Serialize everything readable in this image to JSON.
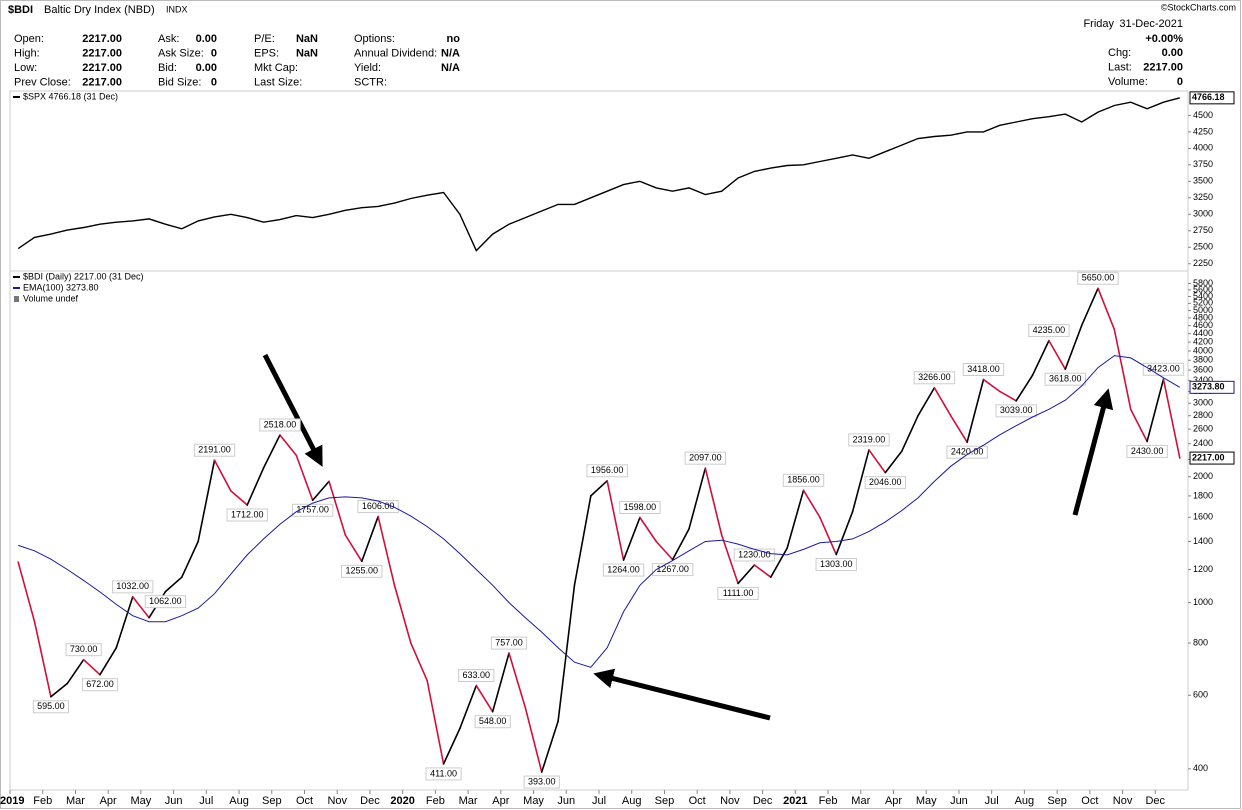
{
  "header": {
    "symbol": "$BDI",
    "name": "Baltic Dry Index (NBD)",
    "exchange": "INDX",
    "watermark": "©StockCharts.com",
    "stats": [
      {
        "label": "Open:",
        "value": "2217.00"
      },
      {
        "label": "High:",
        "value": "2217.00"
      },
      {
        "label": "Low:",
        "value": "2217.00"
      },
      {
        "label": "Prev Close:",
        "value": "2217.00"
      },
      {
        "label": "Ask:",
        "value": "0.00"
      },
      {
        "label": "Ask Size:",
        "value": "0"
      },
      {
        "label": "Bid:",
        "value": "0.00"
      },
      {
        "label": "Bid Size:",
        "value": "0"
      },
      {
        "label": "P/E:",
        "value": "NaN"
      },
      {
        "label": "EPS:",
        "value": "NaN"
      },
      {
        "label": "Mkt Cap:"
      },
      {
        "label": "Last Size:"
      },
      {
        "label": "Options:",
        "value": "no"
      },
      {
        "label": "Annual Dividend:",
        "value": "N/A"
      },
      {
        "label": "Yield:",
        "value": "N/A"
      },
      {
        "label": "SCTR:"
      }
    ],
    "day": "Friday",
    "date": "31-Dec-2021",
    "change_pct": "+0.00%",
    "quote": [
      {
        "label": "Chg:",
        "value": "0.00"
      },
      {
        "label": "Last:",
        "value": "2217.00"
      },
      {
        "label": "Volume:",
        "value": "0"
      }
    ]
  },
  "chart_data": [
    {
      "type": "line",
      "ylim": [
        2140,
        4870
      ],
      "yticks": [
        2250,
        2500,
        2750,
        3000,
        3250,
        3500,
        3750,
        4000,
        4250,
        4500
      ],
      "series": [
        {
          "name": "$SPX 4766.18 (31 Dec)",
          "color": "#000000",
          "values": [
            2480,
            2650,
            2700,
            2760,
            2800,
            2850,
            2880,
            2900,
            2930,
            2850,
            2780,
            2900,
            2960,
            3000,
            2950,
            2880,
            2920,
            2980,
            2950,
            3000,
            3060,
            3100,
            3120,
            3170,
            3240,
            3290,
            3330,
            3000,
            2450,
            2700,
            2850,
            2950,
            3050,
            3150,
            3150,
            3250,
            3350,
            3450,
            3500,
            3400,
            3350,
            3400,
            3300,
            3350,
            3550,
            3650,
            3700,
            3740,
            3750,
            3800,
            3850,
            3900,
            3850,
            3950,
            4050,
            4150,
            4180,
            4200,
            4250,
            4250,
            4350,
            4400,
            4450,
            4480,
            4520,
            4400,
            4550,
            4650,
            4700,
            4600,
            4700,
            4766.18
          ],
          "value_labels": [
            null,
            null,
            null,
            null,
            null,
            null,
            null,
            null,
            null,
            null,
            null,
            null,
            null,
            null,
            null,
            null,
            null,
            null,
            null,
            null,
            null,
            null,
            null,
            null,
            null,
            null,
            null,
            null,
            null,
            null,
            null,
            null,
            null,
            null,
            null,
            null,
            null,
            null,
            null,
            null,
            null,
            null,
            null,
            null,
            null,
            null,
            null,
            null,
            null,
            null,
            null,
            null,
            null,
            null,
            null,
            null,
            null,
            null,
            null,
            null,
            null,
            null,
            null,
            null,
            null,
            null,
            null,
            null,
            null,
            null,
            null,
            "4766.18"
          ]
        }
      ]
    },
    {
      "type": "line",
      "log_scale": true,
      "ylim": [
        356,
        6215
      ],
      "yticks": [
        400,
        600,
        800,
        1000,
        1200,
        1400,
        1600,
        1800,
        2000,
        2200,
        2400,
        2600,
        2800,
        3000,
        3200,
        3400,
        3600,
        3800,
        4000,
        4200,
        4400,
        4600,
        4800,
        5000,
        5200,
        5400,
        5600,
        5800
      ],
      "categories": [
        "2019",
        null,
        "Feb",
        null,
        "Mar",
        null,
        "Apr",
        null,
        "May",
        null,
        "Jun",
        null,
        "Jul",
        null,
        "Aug",
        null,
        "Sep",
        null,
        "Oct",
        null,
        "Nov",
        null,
        "Dec",
        null,
        "2020",
        null,
        "Feb",
        null,
        "Mar",
        null,
        "Apr",
        null,
        "May",
        null,
        "Jun",
        null,
        "Jul",
        null,
        "Aug",
        null,
        "Sep",
        null,
        "Oct",
        null,
        "Nov",
        null,
        "Dec",
        null,
        "2021",
        null,
        "Feb",
        null,
        "Mar",
        null,
        "Apr",
        null,
        "May",
        null,
        "Jun",
        null,
        "Jul",
        null,
        "Aug",
        null,
        "Sep",
        null,
        "Oct",
        null,
        "Nov",
        null,
        "Dec",
        null
      ],
      "extra_legend": "Volume undef",
      "series": [
        {
          "name": "$BDI (Daily) 2217.00 (31 Dec)",
          "color": "#000000",
          "down_color": "#d0103a",
          "values": [
            1250,
            900,
            595,
            640,
            730,
            672,
            780,
            1032,
            920,
            1062,
            1150,
            1400,
            2191,
            1850,
            1712,
            2100,
            2518,
            2250,
            1757,
            1950,
            1450,
            1255,
            1606,
            1100,
            800,
            650,
            411,
            500,
            633,
            548,
            757,
            560,
            393,
            520,
            1100,
            1800,
            1956,
            1264,
            1598,
            1400,
            1267,
            1500,
            2097,
            1450,
            1111,
            1230,
            1150,
            1350,
            1856,
            1600,
            1303,
            1650,
            2319,
            2046,
            2300,
            2800,
            3266,
            2800,
            2420,
            3418,
            3200,
            3039,
            3500,
            4235,
            3618,
            4600,
            5650,
            4500,
            2900,
            2430,
            3423,
            2217
          ],
          "value_labels": [
            null,
            null,
            "595.00",
            null,
            "730.00",
            "672.00",
            null,
            "1032.00",
            null,
            "1062.00",
            null,
            null,
            "2191.00",
            null,
            "1712.00",
            null,
            "2518.00",
            null,
            "1757.00",
            null,
            null,
            "1255.00",
            "1606.00",
            null,
            null,
            null,
            "411.00",
            null,
            "633.00",
            "548.00",
            "757.00",
            null,
            "393.00",
            null,
            null,
            null,
            "1956.00",
            "1264.00",
            "1598.00",
            null,
            "1267.00",
            null,
            "2097.00",
            null,
            "1111.00",
            "1230.00",
            null,
            null,
            "1856.00",
            null,
            "1303.00",
            null,
            "2319.00",
            "2046.00",
            null,
            null,
            "3266.00",
            null,
            "2420.00",
            "3418.00",
            null,
            "3039.00",
            null,
            "4235.00",
            "3618.00",
            null,
            "5650.00",
            null,
            null,
            "2430.00",
            "3423.00",
            "2217.00"
          ]
        },
        {
          "name": "EMA(100) 3273.80",
          "color": "#1a1aa0",
          "values": [
            1370,
            1330,
            1270,
            1200,
            1130,
            1060,
            990,
            930,
            900,
            900,
            930,
            970,
            1050,
            1170,
            1300,
            1420,
            1540,
            1650,
            1730,
            1780,
            1790,
            1780,
            1750,
            1690,
            1610,
            1520,
            1420,
            1310,
            1200,
            1100,
            1000,
            920,
            850,
            780,
            720,
            700,
            780,
            950,
            1100,
            1200,
            1260,
            1330,
            1400,
            1410,
            1380,
            1340,
            1310,
            1300,
            1340,
            1390,
            1400,
            1420,
            1480,
            1560,
            1660,
            1780,
            1950,
            2120,
            2260,
            2380,
            2520,
            2650,
            2780,
            2900,
            3050,
            3300,
            3650,
            3900,
            3850,
            3650,
            3450,
            3273.8
          ],
          "value_labels": [
            null,
            null,
            null,
            null,
            null,
            null,
            null,
            null,
            null,
            null,
            null,
            null,
            null,
            null,
            null,
            null,
            null,
            null,
            null,
            null,
            null,
            null,
            null,
            null,
            null,
            null,
            null,
            null,
            null,
            null,
            null,
            null,
            null,
            null,
            null,
            null,
            null,
            null,
            null,
            null,
            null,
            null,
            null,
            null,
            null,
            null,
            null,
            null,
            null,
            null,
            null,
            null,
            null,
            null,
            null,
            null,
            null,
            null,
            null,
            null,
            null,
            null,
            null,
            null,
            null,
            null,
            null,
            null,
            null,
            null,
            null,
            "3273.80"
          ]
        }
      ]
    }
  ]
}
